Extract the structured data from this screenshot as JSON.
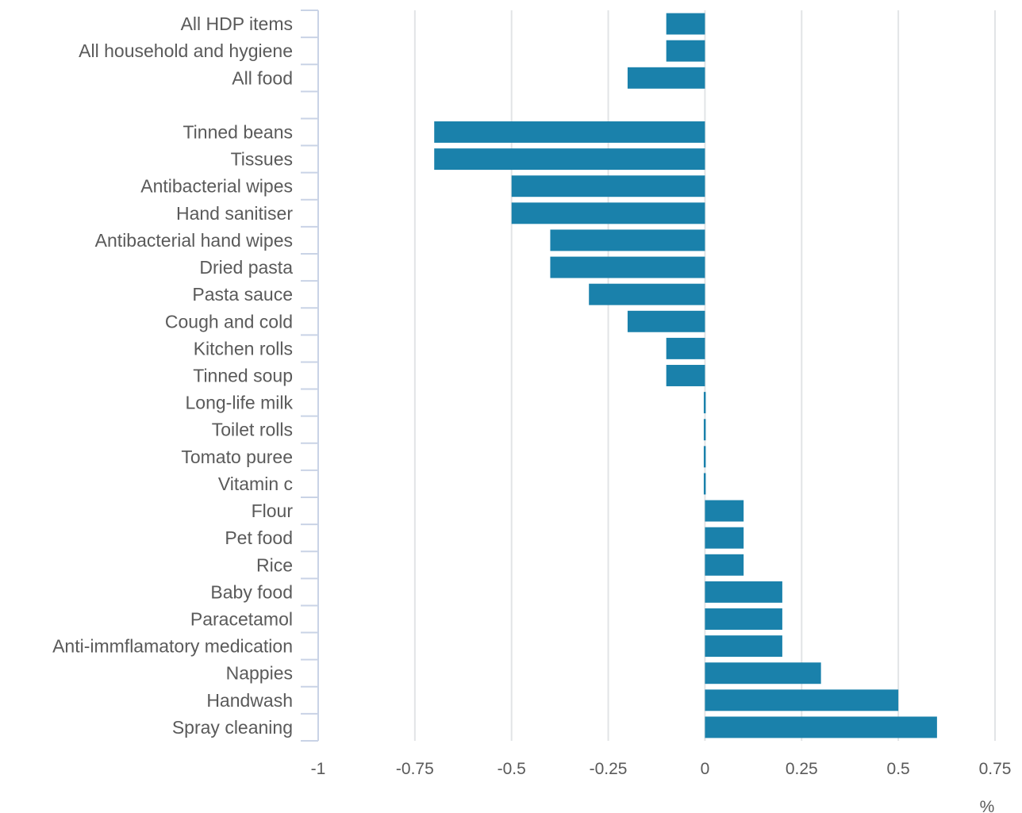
{
  "chart_data": {
    "type": "bar",
    "orientation": "horizontal",
    "categories": [
      "All HDP items",
      "All household and hygiene",
      "All food",
      "",
      "Tinned beans",
      "Tissues",
      "Antibacterial wipes",
      "Hand sanitiser",
      "Antibacterial hand wipes",
      "Dried pasta",
      "Pasta sauce",
      "Cough and cold",
      "Kitchen rolls",
      "Tinned soup",
      "Long-life milk",
      "Toilet rolls",
      "Tomato puree",
      "Vitamin c",
      "Flour",
      "Pet food",
      "Rice",
      "Baby food",
      "Paracetamol",
      "Anti-immflamatory medication",
      "Nappies",
      "Handwash",
      "Spray cleaning"
    ],
    "values": [
      -0.1,
      -0.1,
      -0.2,
      null,
      -0.7,
      -0.7,
      -0.5,
      -0.5,
      -0.4,
      -0.4,
      -0.3,
      -0.2,
      -0.1,
      -0.1,
      0,
      0,
      0,
      0,
      0.1,
      0.1,
      0.1,
      0.2,
      0.2,
      0.2,
      0.3,
      0.5,
      0.6
    ],
    "x_ticks": [
      -1,
      -0.75,
      -0.5,
      -0.25,
      0,
      0.25,
      0.5,
      0.75
    ],
    "x_tick_labels": [
      "-1",
      "-0.75",
      "-0.5",
      "-0.25",
      "0",
      "0.25",
      "0.5",
      "0.75"
    ],
    "xlim": [
      -1,
      0.75
    ],
    "xlabel": "%",
    "grid": true,
    "legend": "none",
    "colors": {
      "bar": "#1a81ab",
      "grid": "#e2e4e6",
      "axis": "#c9d3e6",
      "text": "#5a5a5a"
    }
  }
}
